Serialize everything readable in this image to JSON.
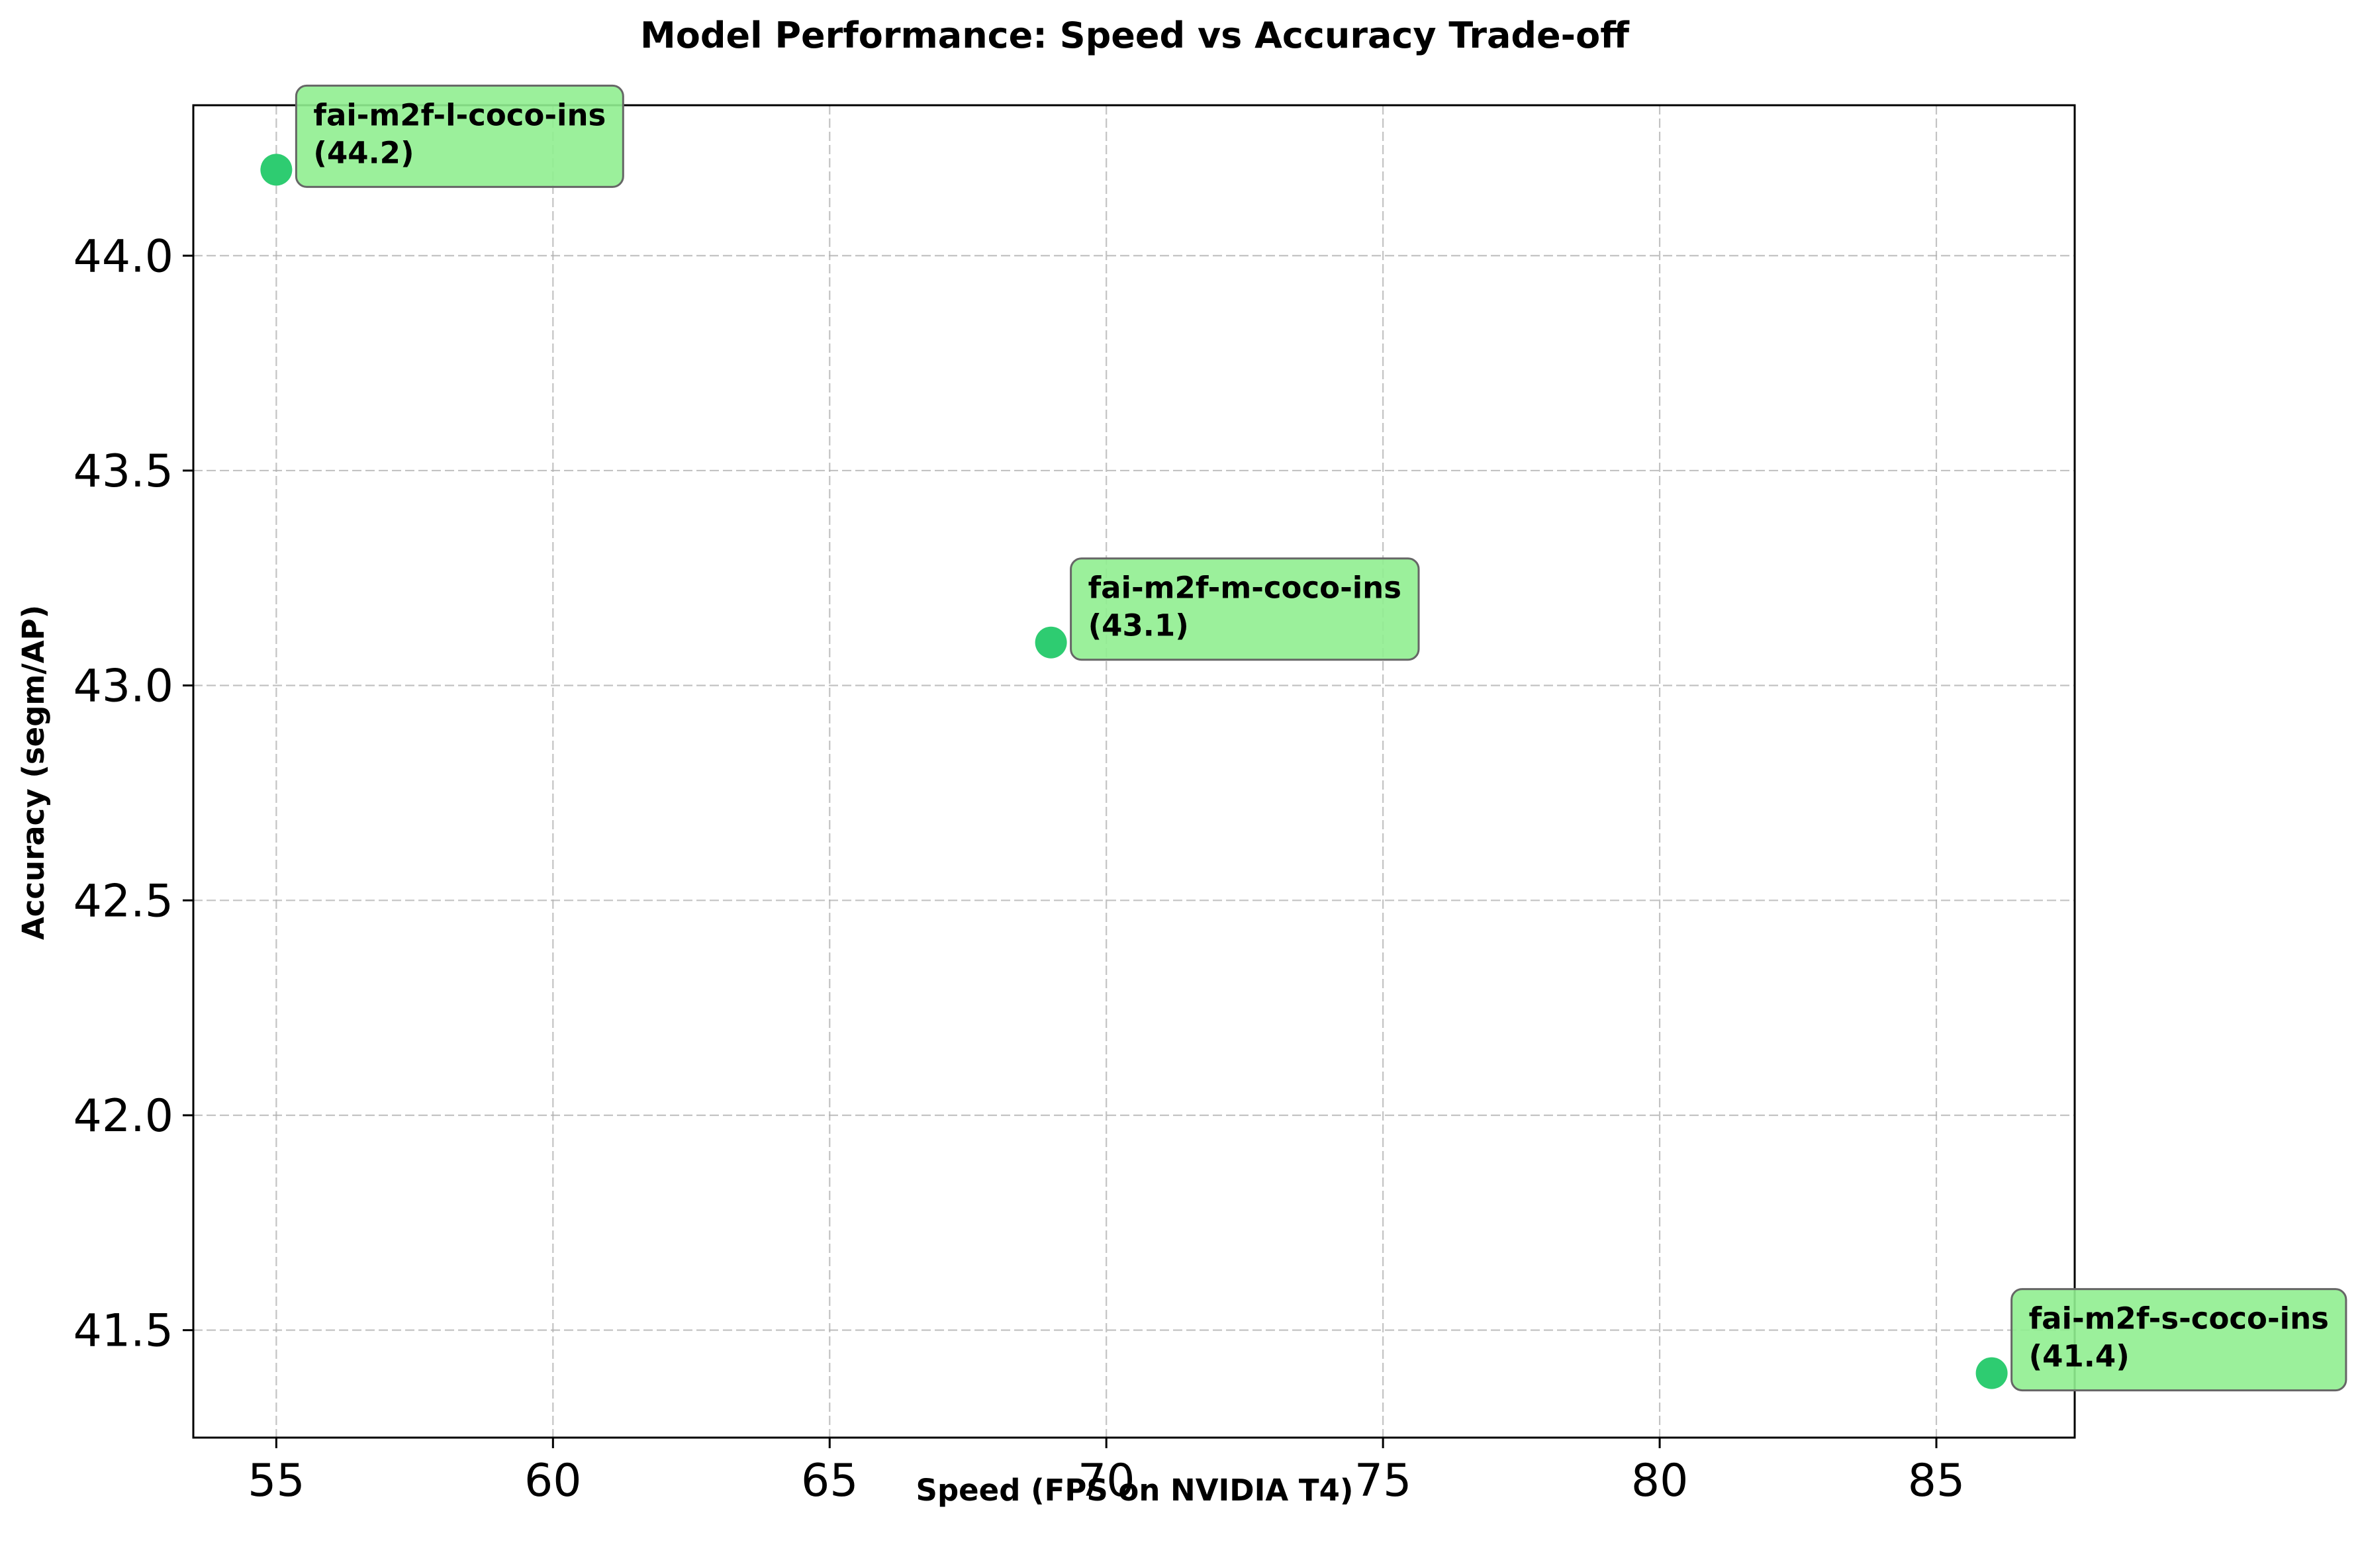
{
  "chart_data": {
    "type": "scatter",
    "title": "Model Performance: Speed vs Accuracy Trade-off",
    "xlabel": "Speed (FPS on NVIDIA T4)",
    "ylabel": "Accuracy (segm/AP)",
    "xlim": [
      53.5,
      87.5
    ],
    "ylim": [
      41.25,
      44.35
    ],
    "xticks": [
      55,
      60,
      65,
      70,
      75,
      80,
      85
    ],
    "yticks": [
      41.5,
      42.0,
      42.5,
      43.0,
      43.5,
      44.0
    ],
    "xtick_labels": [
      "55",
      "60",
      "65",
      "70",
      "75",
      "80",
      "85"
    ],
    "ytick_labels": [
      "41.5",
      "42.0",
      "42.5",
      "43.0",
      "43.5",
      "44.0"
    ],
    "grid": true,
    "point_color": "#2ecc71",
    "annotation_bg": "#90ee90",
    "points": [
      {
        "x": 55,
        "y": 44.2,
        "label": "fai-m2f-l-coco-ins",
        "value_label": "(44.2)"
      },
      {
        "x": 69,
        "y": 43.1,
        "label": "fai-m2f-m-coco-ins",
        "value_label": "(43.1)"
      },
      {
        "x": 86,
        "y": 41.4,
        "label": "fai-m2f-s-coco-ins",
        "value_label": "(41.4)"
      }
    ]
  }
}
